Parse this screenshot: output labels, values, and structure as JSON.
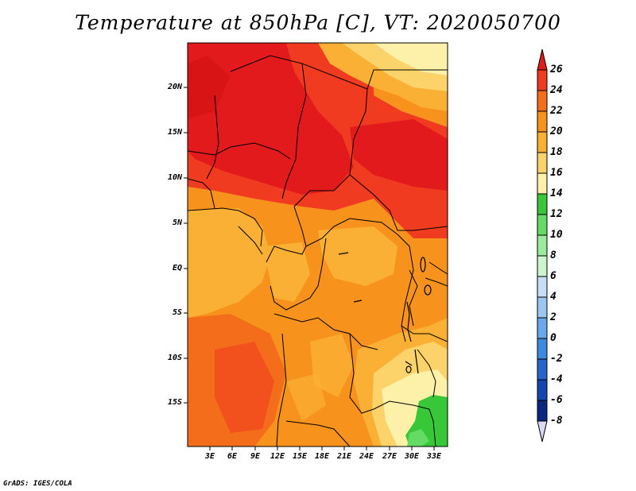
{
  "title": "Temperature at 850hPa [C], VT: 2020050700",
  "credit": "GrADS: IGES/COLA",
  "map": {
    "lat_labels": [
      "20N",
      "15N",
      "10N",
      "5N",
      "EQ",
      "5S",
      "10S",
      "15S"
    ],
    "lon_labels": [
      "3E",
      "6E",
      "9E",
      "12E",
      "15E",
      "18E",
      "21E",
      "24E",
      "27E",
      "30E",
      "33E"
    ]
  },
  "colorbar": {
    "labels": [
      "26",
      "24",
      "22",
      "20",
      "18",
      "16",
      "14",
      "12",
      "10",
      "8",
      "6",
      "4",
      "2",
      "0",
      "-2",
      "-4",
      "-6",
      "-8"
    ],
    "colors": [
      "#e31a1c",
      "#f03b20",
      "#f46d1b",
      "#f7921d",
      "#fab035",
      "#fcd36a",
      "#fdf0a8",
      "#38c738",
      "#64db64",
      "#9ceb9c",
      "#cdf5cd",
      "#c6dff7",
      "#9bc6f2",
      "#6aa8ec",
      "#3b8ae0",
      "#2565cc",
      "#1546b0",
      "#0a2680",
      "#07105a"
    ]
  }
}
